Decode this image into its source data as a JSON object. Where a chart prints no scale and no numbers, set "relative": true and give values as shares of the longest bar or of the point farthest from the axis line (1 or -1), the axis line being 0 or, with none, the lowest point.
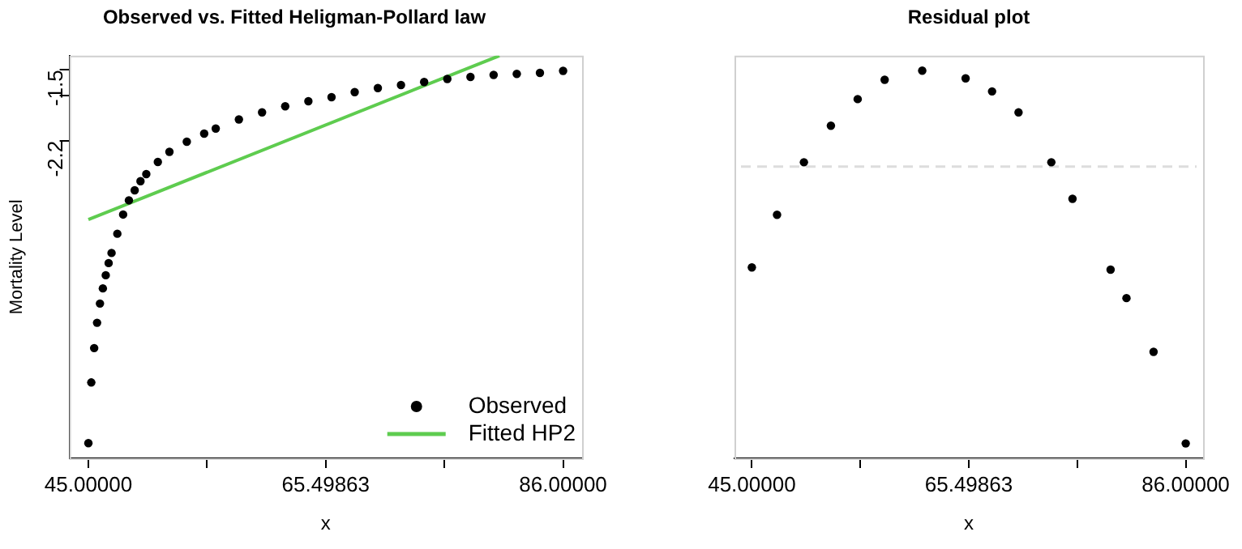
{
  "chart_data": [
    {
      "type": "scatter",
      "title": "Observed vs. Fitted Heligman-Pollard law",
      "xlabel": "x",
      "ylabel": "Mortality Level",
      "xlim": [
        43.36,
        87.64
      ],
      "xticks": [
        {
          "value": 45,
          "label": "45.00000"
        },
        {
          "value": 55.24932,
          "label": null
        },
        {
          "value": 65.49863,
          "label": "65.49863"
        },
        {
          "value": 75.74932,
          "label": null
        },
        {
          "value": 86,
          "label": "86.00000"
        }
      ],
      "ylim": [
        -5.34,
        -1.36
      ],
      "yticks": [
        {
          "value": -2.2,
          "label": "-2.2"
        },
        {
          "value": -1.75,
          "label": null
        },
        {
          "value": -1.5,
          "label": "-1.5"
        }
      ],
      "legend": "bottom right",
      "series": [
        {
          "name": "Observed",
          "marker": "circle",
          "color": "#000000",
          "x": [
            45,
            45.25,
            45.5,
            45.75,
            46,
            46.25,
            46.5,
            46.75,
            47,
            47.5,
            48,
            48.5,
            49,
            49.5,
            50,
            51,
            52,
            53.5,
            55,
            56,
            58,
            60,
            62,
            64,
            66,
            68,
            70,
            72,
            74,
            76,
            78,
            80,
            82,
            84,
            86
          ],
          "values": [
            -5.19,
            -4.59,
            -4.25,
            -4.0,
            -3.81,
            -3.66,
            -3.53,
            -3.41,
            -3.31,
            -3.12,
            -2.93,
            -2.79,
            -2.69,
            -2.6,
            -2.53,
            -2.41,
            -2.31,
            -2.21,
            -2.13,
            -2.08,
            -1.99,
            -1.92,
            -1.86,
            -1.81,
            -1.77,
            -1.72,
            -1.68,
            -1.65,
            -1.62,
            -1.59,
            -1.57,
            -1.55,
            -1.54,
            -1.53,
            -1.51
          ]
        },
        {
          "name": "Fitted HP2",
          "type": "line",
          "color": "#5ecc4f",
          "x": [
            45,
            80.5
          ],
          "values": [
            -2.98,
            -1.36
          ]
        }
      ]
    },
    {
      "type": "scatter",
      "title": "Residual plot",
      "xlabel": "x",
      "relative": true,
      "xlim": [
        43.36,
        87.64
      ],
      "xticks": [
        {
          "value": 45,
          "label": "45.00000"
        },
        {
          "value": 55.24932,
          "label": null
        },
        {
          "value": 65.49863,
          "label": "65.49863"
        },
        {
          "value": 75.74932,
          "label": null
        },
        {
          "value": 86,
          "label": "86.00000"
        }
      ],
      "tick_labels": "x",
      "legend": false,
      "marker": "circle",
      "ref_lines": [
        {
          "axis": "y",
          "value": 0,
          "label": null,
          "color": "#dddddd",
          "line_style": "dashed"
        }
      ],
      "series": [
        {
          "color": "#000000",
          "x": [
            45,
            47.38,
            49.92,
            52.47,
            55,
            57.55,
            61.1,
            65.2,
            67.7,
            70.2,
            73.3,
            75.3,
            78.9,
            80.4,
            82.96,
            86
          ],
          "values": [
            -0.364,
            -0.174,
            0.016,
            0.148,
            0.244,
            0.314,
            0.347,
            0.319,
            0.272,
            0.196,
            0.016,
            -0.116,
            -0.372,
            -0.475,
            -0.669,
            -1
          ]
        }
      ]
    }
  ]
}
